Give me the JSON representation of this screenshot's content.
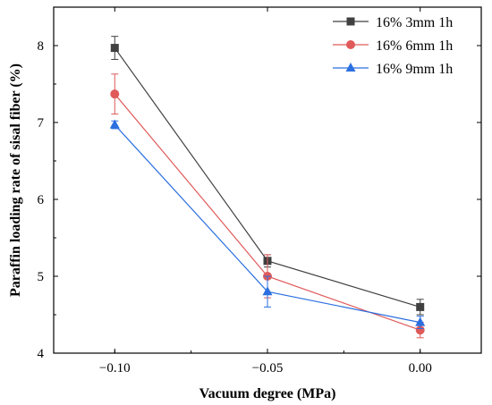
{
  "chart_data": {
    "type": "line",
    "xlabel": "Vacuum degree (MPa)",
    "ylabel": "Paraffin loading rate of sisal fiber (%)",
    "xlim": [
      -0.12,
      0.02
    ],
    "ylim": [
      4,
      8.5
    ],
    "x_ticks": [
      -0.1,
      -0.05,
      0.0
    ],
    "x_tick_labels": [
      "−0.10",
      "−0.05",
      "0.00"
    ],
    "y_ticks": [
      4,
      5,
      6,
      7,
      8
    ],
    "y_tick_labels": [
      "4",
      "5",
      "6",
      "7",
      "8"
    ],
    "legend_position": "top-right",
    "grid": false,
    "series": [
      {
        "name": "16% 3mm 1h",
        "marker": "square",
        "color": "#404040",
        "x": [
          -0.1,
          -0.05,
          0.0
        ],
        "y": [
          7.97,
          5.2,
          4.6
        ],
        "error": [
          0.15,
          0.08,
          0.1
        ]
      },
      {
        "name": "16% 6mm 1h",
        "marker": "circle",
        "color": "#e05a5a",
        "x": [
          -0.1,
          -0.05,
          0.0
        ],
        "y": [
          7.37,
          5.0,
          4.3
        ],
        "error": [
          0.26,
          0.28,
          0.1
        ]
      },
      {
        "name": "16% 9mm 1h",
        "marker": "triangle",
        "color": "#2b6fe0",
        "x": [
          -0.1,
          -0.05,
          0.0
        ],
        "y": [
          6.97,
          4.8,
          4.4
        ],
        "error": [
          0.05,
          0.2,
          0.08
        ]
      }
    ]
  }
}
